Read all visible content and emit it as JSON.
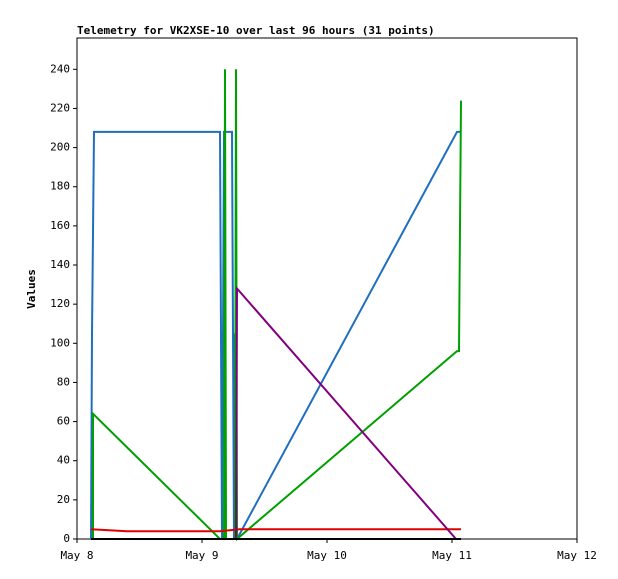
{
  "chart_data": {
    "type": "line",
    "title": "Telemetry for VK2XSE-10 over last 96 hours (31 points)",
    "y_label": "Values",
    "xlim": [
      0,
      4
    ],
    "xticks": [
      {
        "value": 0,
        "label": "May 8"
      },
      {
        "value": 1,
        "label": "May 9"
      },
      {
        "value": 2,
        "label": "May 10"
      },
      {
        "value": 3,
        "label": "May 11"
      },
      {
        "value": 4,
        "label": "May 12"
      }
    ],
    "ylim": [
      0,
      256
    ],
    "yticks": [
      0,
      20,
      40,
      60,
      80,
      100,
      120,
      140,
      160,
      180,
      200,
      220,
      240
    ],
    "grid": false,
    "series": [
      {
        "color": "#1f6fbf",
        "x": [
          0.112,
          0.12,
          0.136,
          1.144,
          1.16,
          1.176,
          1.24,
          1.256,
          1.264,
          1.28,
          3.04,
          3.07
        ],
        "values": [
          0,
          105,
          208,
          208,
          0,
          208,
          208,
          0,
          105,
          0,
          208,
          208
        ]
      },
      {
        "color": "#00a000",
        "x": [
          0.128,
          0.128,
          1.144,
          1.176,
          1.184,
          1.192,
          1.264,
          1.272,
          1.28,
          3.04,
          3.056,
          3.072
        ],
        "values": [
          0,
          64,
          0,
          0,
          240,
          0,
          0,
          240,
          0,
          96,
          96,
          224
        ]
      },
      {
        "color": "#e00000",
        "x": [
          0.112,
          0.4,
          1.144,
          1.3,
          3.072
        ],
        "values": [
          5,
          4,
          4,
          5,
          5
        ]
      },
      {
        "color": "#800080",
        "x": [
          1.272,
          1.28,
          3.032
        ],
        "values": [
          0,
          128,
          0
        ]
      },
      {
        "color": "#000000",
        "x": [
          0.112,
          3.072
        ],
        "values": [
          0,
          0
        ]
      }
    ]
  }
}
